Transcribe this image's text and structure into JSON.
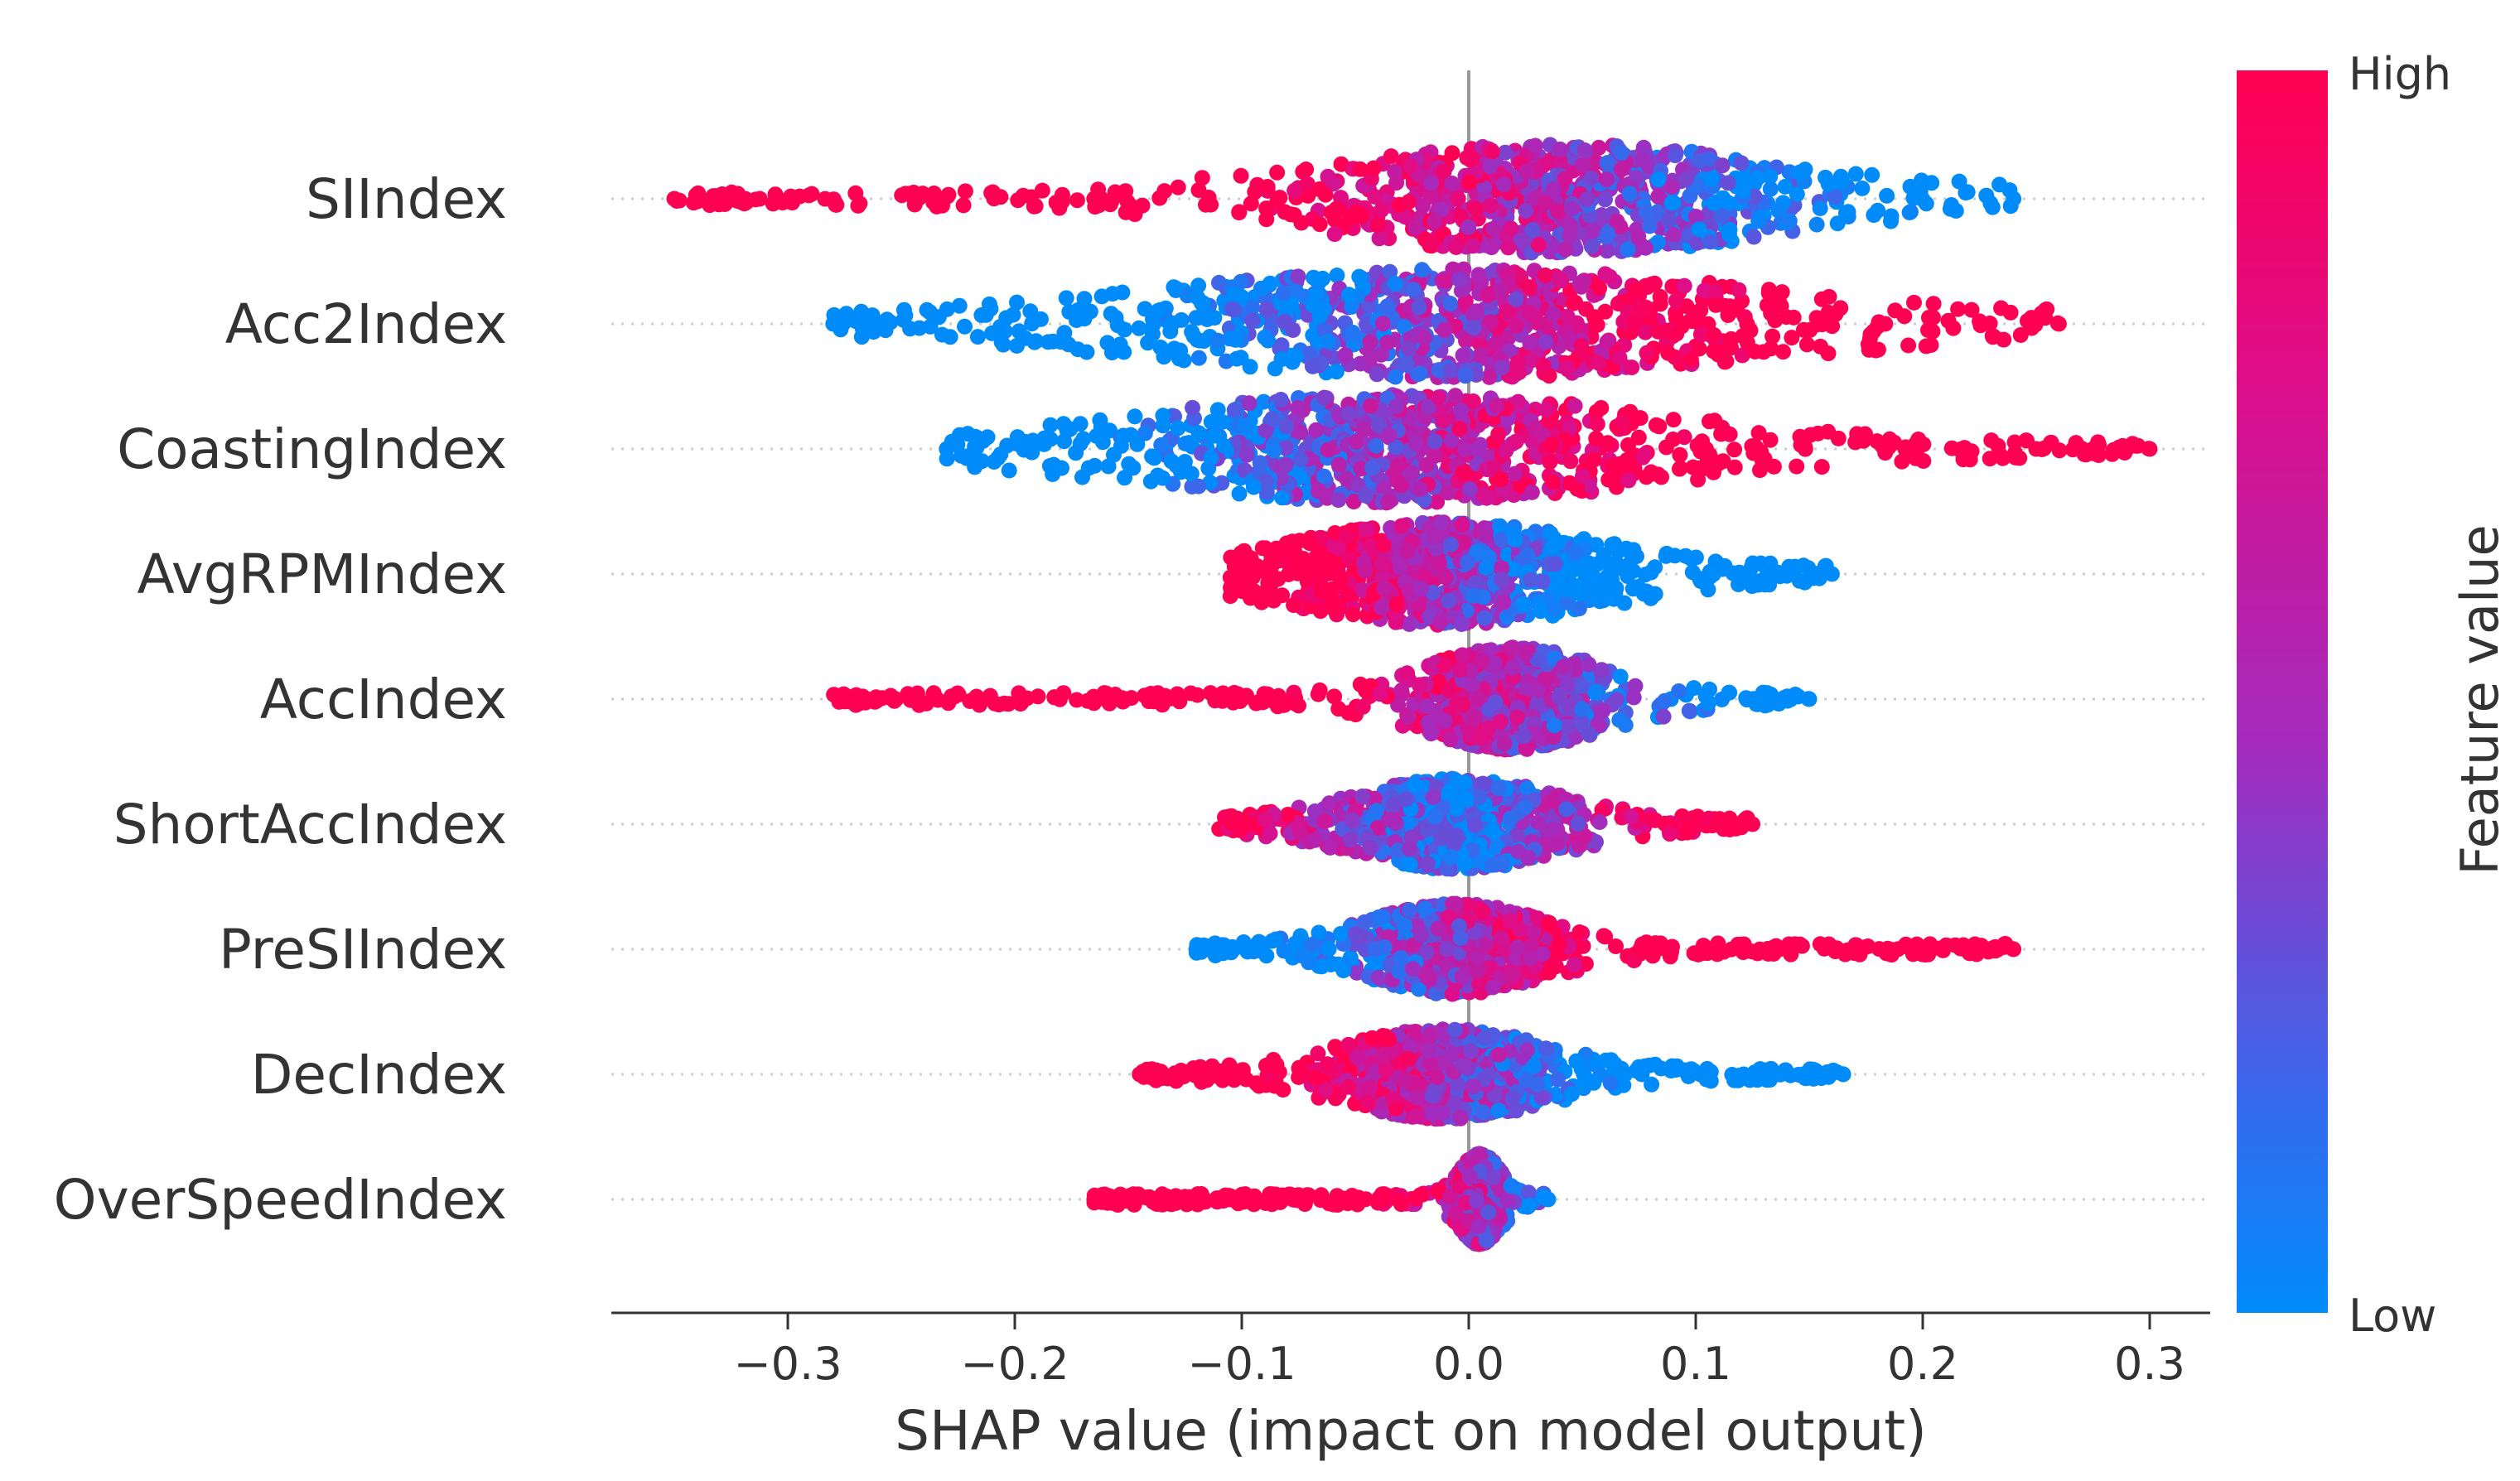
{
  "chart_data": {
    "type": "scatter",
    "subtype": "shap-beeswarm",
    "title": "",
    "xlabel": "SHAP value (impact on model output)",
    "ylabel": "",
    "xlim": [
      -0.38,
      0.33
    ],
    "xticks": [
      -0.3,
      -0.2,
      -0.1,
      0.0,
      0.1,
      0.2,
      0.3
    ],
    "xtick_labels": [
      "−0.3",
      "−0.2",
      "−0.1",
      "0.0",
      "0.1",
      "0.2",
      "0.3"
    ],
    "zero_line": 0.0,
    "colorbar": {
      "title": "Feature value",
      "high_label": "High",
      "low_label": "Low",
      "high_color": "#ff0052",
      "mid_color": "#a633b5",
      "low_color": "#008bfb"
    },
    "features": [
      {
        "name": "SIIndex",
        "x_min": -0.35,
        "x_max": 0.24,
        "bulk_center": 0.04,
        "bulk_width": 0.09,
        "max_spread": 0.36,
        "trend": "negative",
        "outliers": [
          {
            "x": -0.35,
            "value": "high"
          },
          {
            "x": 0.24,
            "value": "low"
          }
        ]
      },
      {
        "name": "Acc2Index",
        "x_min": -0.28,
        "x_max": 0.26,
        "bulk_center": 0.0,
        "bulk_width": 0.12,
        "max_spread": 0.36,
        "trend": "positive",
        "outliers": [
          {
            "x": -0.28,
            "value": "low"
          },
          {
            "x": -0.265,
            "value": "low"
          },
          {
            "x": 0.26,
            "value": "high"
          }
        ]
      },
      {
        "name": "CoastingIndex",
        "x_min": -0.23,
        "x_max": 0.3,
        "bulk_center": -0.03,
        "bulk_width": 0.1,
        "max_spread": 0.36,
        "trend": "positive",
        "outliers": [
          {
            "x": -0.23,
            "value": "low"
          },
          {
            "x": 0.25,
            "value": "high"
          },
          {
            "x": 0.275,
            "value": "high"
          },
          {
            "x": 0.3,
            "value": "high"
          }
        ]
      },
      {
        "name": "AvgRPMIndex",
        "x_min": -0.105,
        "x_max": 0.16,
        "bulk_center": -0.01,
        "bulk_width": 0.06,
        "max_spread": 0.34,
        "trend": "negative",
        "outliers": [
          {
            "x": 0.135,
            "value": "low"
          },
          {
            "x": 0.16,
            "value": "low"
          }
        ]
      },
      {
        "name": "AccIndex",
        "x_min": -0.28,
        "x_max": 0.15,
        "bulk_center": 0.02,
        "bulk_width": 0.035,
        "max_spread": 0.34,
        "trend": "negative",
        "outliers": [
          {
            "x": 0.125,
            "value": "low"
          },
          {
            "x": 0.135,
            "value": "low"
          },
          {
            "x": 0.15,
            "value": "low"
          }
        ]
      },
      {
        "name": "ShortAccIndex",
        "x_min": -0.11,
        "x_max": 0.125,
        "bulk_center": -0.005,
        "bulk_width": 0.04,
        "max_spread": 0.3,
        "trend": "mixed",
        "outliers": [
          {
            "x": 0.125,
            "value": "high"
          }
        ]
      },
      {
        "name": "PreSIIndex",
        "x_min": -0.12,
        "x_max": 0.24,
        "bulk_center": -0.005,
        "bulk_width": 0.035,
        "max_spread": 0.3,
        "trend": "positive",
        "outliers": [
          {
            "x": -0.12,
            "value": "low"
          },
          {
            "x": 0.24,
            "value": "high"
          }
        ]
      },
      {
        "name": "DecIndex",
        "x_min": -0.145,
        "x_max": 0.165,
        "bulk_center": -0.01,
        "bulk_width": 0.04,
        "max_spread": 0.3,
        "trend": "negative",
        "outliers": [
          {
            "x": -0.145,
            "value": "high"
          },
          {
            "x": -0.105,
            "value": "high"
          },
          {
            "x": 0.165,
            "value": "low"
          }
        ]
      },
      {
        "name": "OverSpeedIndex",
        "x_min": -0.165,
        "x_max": 0.035,
        "bulk_center": 0.005,
        "bulk_width": 0.008,
        "max_spread": 0.3,
        "trend": "negative",
        "outliers": [
          {
            "x": -0.165,
            "value": "high"
          },
          {
            "x": 0.035,
            "value": "low"
          }
        ]
      }
    ]
  }
}
